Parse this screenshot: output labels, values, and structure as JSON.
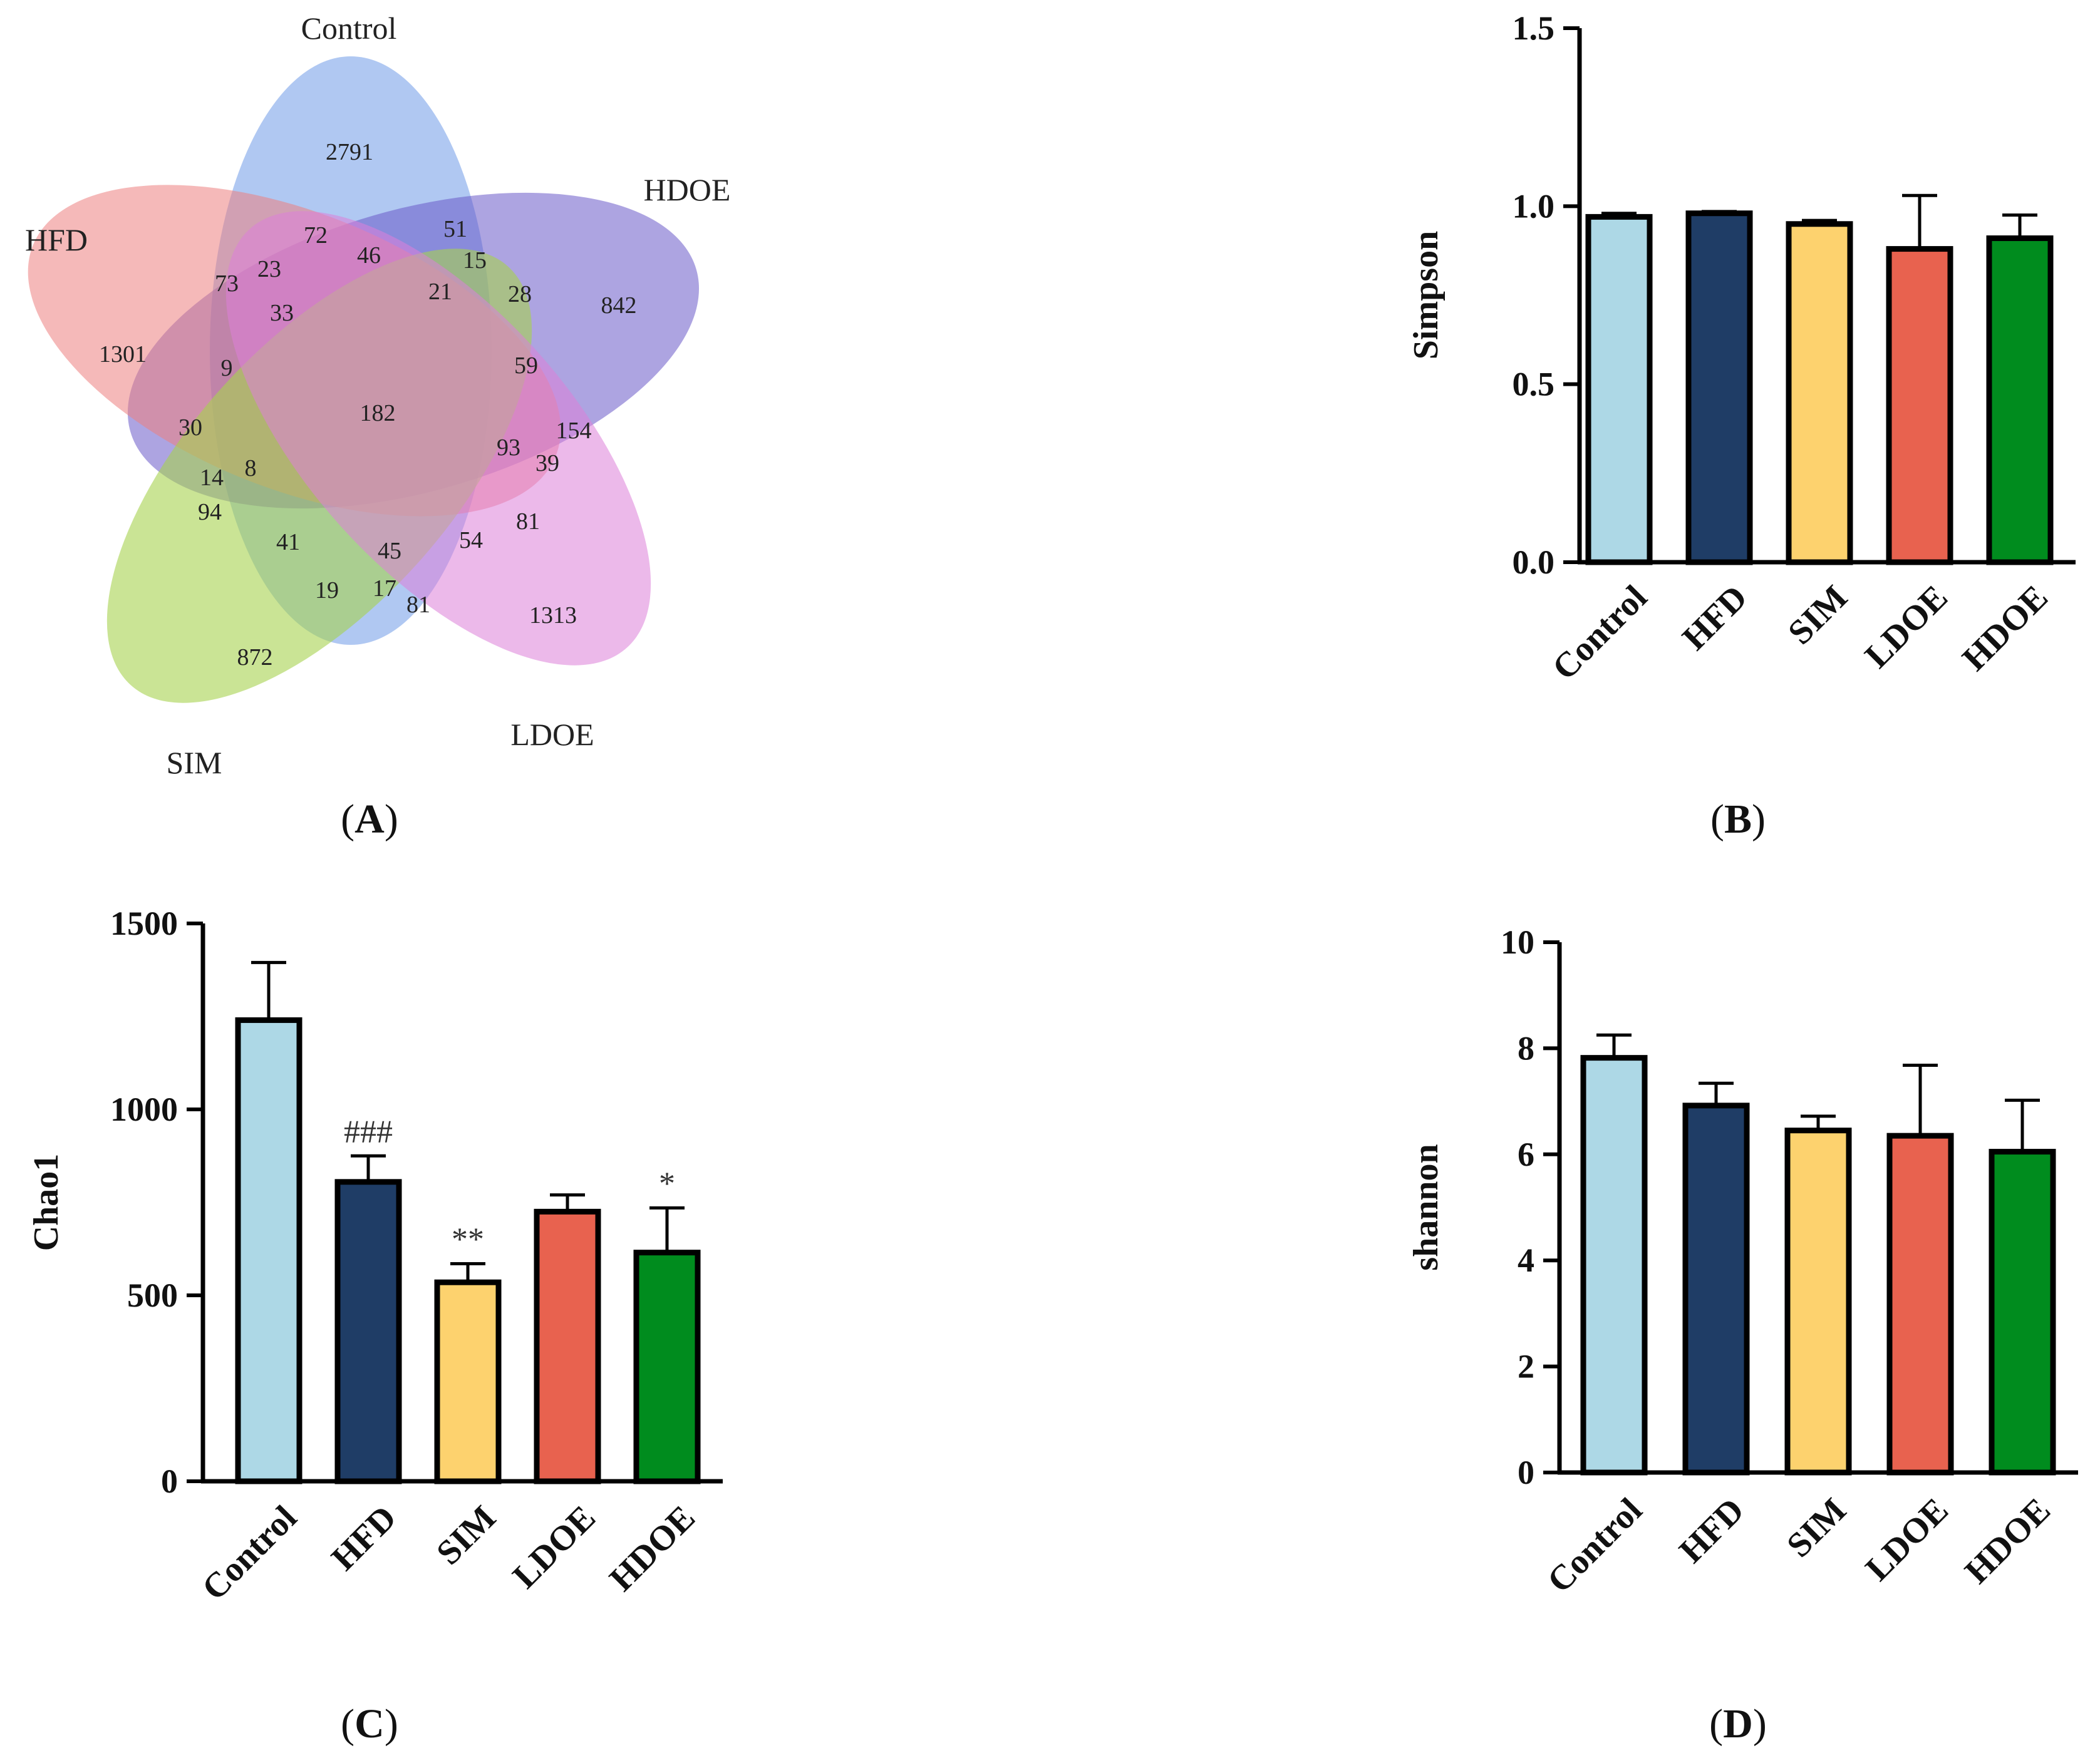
{
  "figure": {
    "panels": [
      {
        "prefix": "(",
        "letter": "A",
        "suffix": ")"
      },
      {
        "prefix": "(",
        "letter": "B",
        "suffix": ")"
      },
      {
        "prefix": "(",
        "letter": "C",
        "suffix": ")"
      },
      {
        "prefix": "(",
        "letter": "D",
        "suffix": ")"
      }
    ]
  },
  "colors": {
    "Control": "#add8e6",
    "HFD": "#1f3d66",
    "SIM": "#fdd26e",
    "LDOE": "#e8624f",
    "HDOE": "#008c1e",
    "edge": "#000000"
  },
  "venn": {
    "sets": [
      {
        "name": "Control",
        "color": "#6f9be8"
      },
      {
        "name": "HDOE",
        "color": "#6a5ac8"
      },
      {
        "name": "HFD",
        "color": "#ec7f7f"
      },
      {
        "name": "SIM",
        "color": "#a7d24e"
      },
      {
        "name": "LDOE",
        "color": "#dc7fd8"
      }
    ],
    "counts": [
      "2791",
      "842",
      "1301",
      "872",
      "1313",
      "72",
      "51",
      "46",
      "15",
      "23",
      "73",
      "33",
      "21",
      "28",
      "9",
      "59",
      "182",
      "30",
      "154",
      "93",
      "39",
      "14",
      "8",
      "94",
      "81",
      "41",
      "45",
      "54",
      "19",
      "17",
      "81"
    ]
  },
  "chart_data": [
    {
      "type": "bar",
      "panel": "B",
      "categories": [
        "Control",
        "HFD",
        "SIM",
        "LDOE",
        "HDOE"
      ],
      "values": [
        0.97,
        0.98,
        0.95,
        0.88,
        0.91
      ],
      "errors": [
        0.01,
        0.005,
        0.01,
        0.15,
        0.065
      ],
      "annotations": [
        "",
        "",
        "",
        "",
        ""
      ],
      "ylabel": "Simpson",
      "ylim": [
        0,
        1.5
      ],
      "ticks": [
        0.0,
        0.5,
        1.0,
        1.5
      ],
      "tick_labels": [
        "0.0",
        "0.5",
        "1.0",
        "1.5"
      ]
    },
    {
      "type": "bar",
      "panel": "C",
      "categories": [
        "Control",
        "HFD",
        "SIM",
        "LDOE",
        "HDOE"
      ],
      "values": [
        1240,
        805,
        535,
        725,
        615
      ],
      "errors": [
        155,
        70,
        50,
        45,
        120
      ],
      "annotations": [
        "",
        "###",
        "**",
        "",
        "*"
      ],
      "ylabel": "Chao1",
      "ylim": [
        0,
        1500
      ],
      "ticks": [
        0,
        500,
        1000,
        1500
      ],
      "tick_labels": [
        "0",
        "500",
        "1000",
        "1500"
      ]
    },
    {
      "type": "bar",
      "panel": "D",
      "categories": [
        "Control",
        "HFD",
        "SIM",
        "LDOE",
        "HDOE"
      ],
      "values": [
        7.82,
        6.92,
        6.45,
        6.35,
        6.05
      ],
      "errors": [
        0.43,
        0.42,
        0.27,
        1.33,
        0.97
      ],
      "annotations": [
        "",
        "",
        "",
        "",
        ""
      ],
      "ylabel": "shannon",
      "ylim": [
        0,
        10
      ],
      "ticks": [
        0,
        2,
        4,
        6,
        8,
        10
      ],
      "tick_labels": [
        "0",
        "2",
        "4",
        "6",
        "8",
        "10"
      ]
    }
  ]
}
